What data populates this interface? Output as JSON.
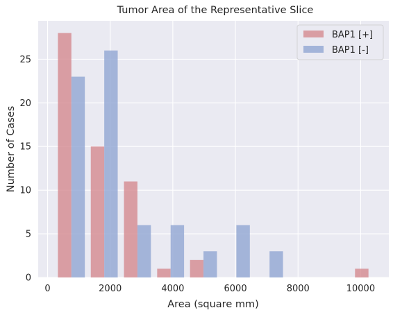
{
  "chart_data": {
    "type": "bar",
    "title": "Tumor Area of the Representative Slice",
    "xlabel": "Area (square mm)",
    "ylabel": "Number of Cases",
    "xlim": [
      -300,
      10900
    ],
    "ylim": [
      0,
      29.4
    ],
    "x_ticks": [
      0,
      2000,
      4000,
      6000,
      8000,
      10000
    ],
    "y_ticks": [
      0,
      5,
      10,
      15,
      20,
      25
    ],
    "grid": true,
    "legend_position": "top-right",
    "bins": [
      {
        "x0": 330,
        "x1": 760
      },
      {
        "x0": 1380,
        "x1": 1810
      },
      {
        "x0": 2440,
        "x1": 2870
      },
      {
        "x0": 3500,
        "x1": 3930
      },
      {
        "x0": 4550,
        "x1": 4980
      },
      {
        "x0": 5600,
        "x1": 6030
      },
      {
        "x0": 6660,
        "x1": 7090
      },
      {
        "x0": 7720,
        "x1": 8150
      },
      {
        "x0": 8770,
        "x1": 9200
      },
      {
        "x0": 9820,
        "x1": 10250
      }
    ],
    "series": [
      {
        "name": "BAP1 [+]",
        "color": "#d4868d",
        "offset": 0,
        "values": [
          28,
          15,
          11,
          1,
          2,
          0,
          0,
          0,
          0,
          1
        ]
      },
      {
        "name": "BAP1 [-]",
        "color": "#8ea4d2",
        "offset": 430,
        "values": [
          23,
          26,
          6,
          6,
          3,
          6,
          3,
          0,
          0,
          0
        ]
      }
    ]
  }
}
